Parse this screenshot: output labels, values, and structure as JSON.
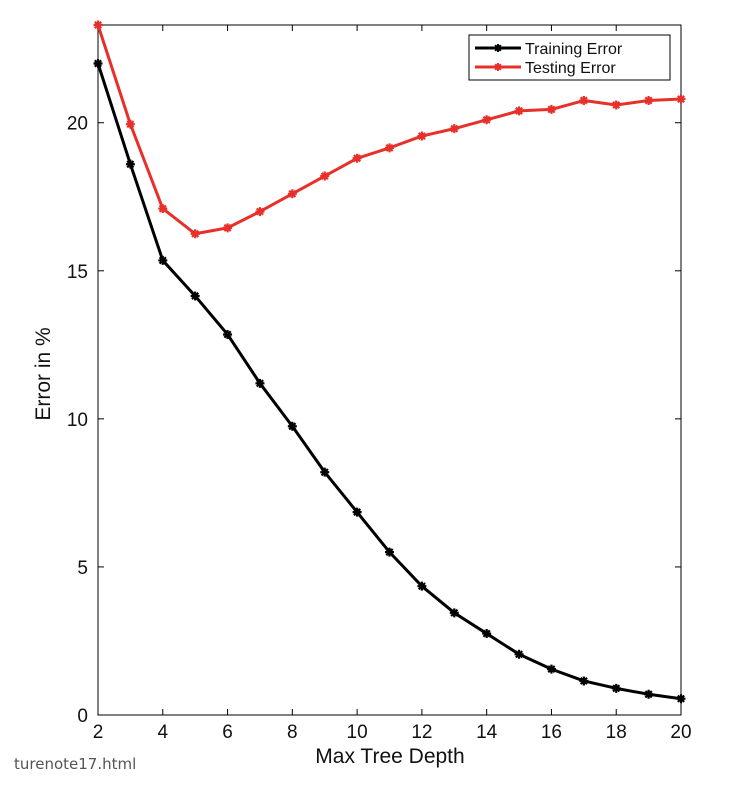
{
  "chart_data": {
    "type": "line",
    "xlabel": "Max Tree Depth",
    "ylabel": "Error in %",
    "xlim": [
      2,
      20
    ],
    "ylim": [
      0,
      23.3
    ],
    "xticks": [
      2,
      4,
      6,
      8,
      10,
      12,
      14,
      16,
      18,
      20
    ],
    "yticks": [
      0,
      5,
      10,
      15,
      20
    ],
    "legend_position": "top-right",
    "grid": false,
    "x": [
      2,
      3,
      4,
      5,
      6,
      7,
      8,
      9,
      10,
      11,
      12,
      13,
      14,
      15,
      16,
      17,
      18,
      19,
      20
    ],
    "series": [
      {
        "name": "Training Error",
        "color": "#000000",
        "marker": "star",
        "values": [
          22.0,
          18.6,
          15.35,
          14.15,
          12.85,
          11.2,
          9.75,
          8.2,
          6.85,
          5.5,
          4.35,
          3.45,
          2.75,
          2.05,
          1.55,
          1.15,
          0.9,
          0.7,
          0.55
        ]
      },
      {
        "name": "Testing Error",
        "color": "#e8302a",
        "marker": "star",
        "values": [
          23.3,
          19.95,
          17.1,
          16.25,
          16.45,
          17.0,
          17.6,
          18.2,
          18.8,
          19.15,
          19.55,
          19.8,
          20.1,
          20.4,
          20.45,
          20.75,
          20.6,
          20.75,
          20.8
        ]
      }
    ]
  },
  "caption": "turenote17.html"
}
